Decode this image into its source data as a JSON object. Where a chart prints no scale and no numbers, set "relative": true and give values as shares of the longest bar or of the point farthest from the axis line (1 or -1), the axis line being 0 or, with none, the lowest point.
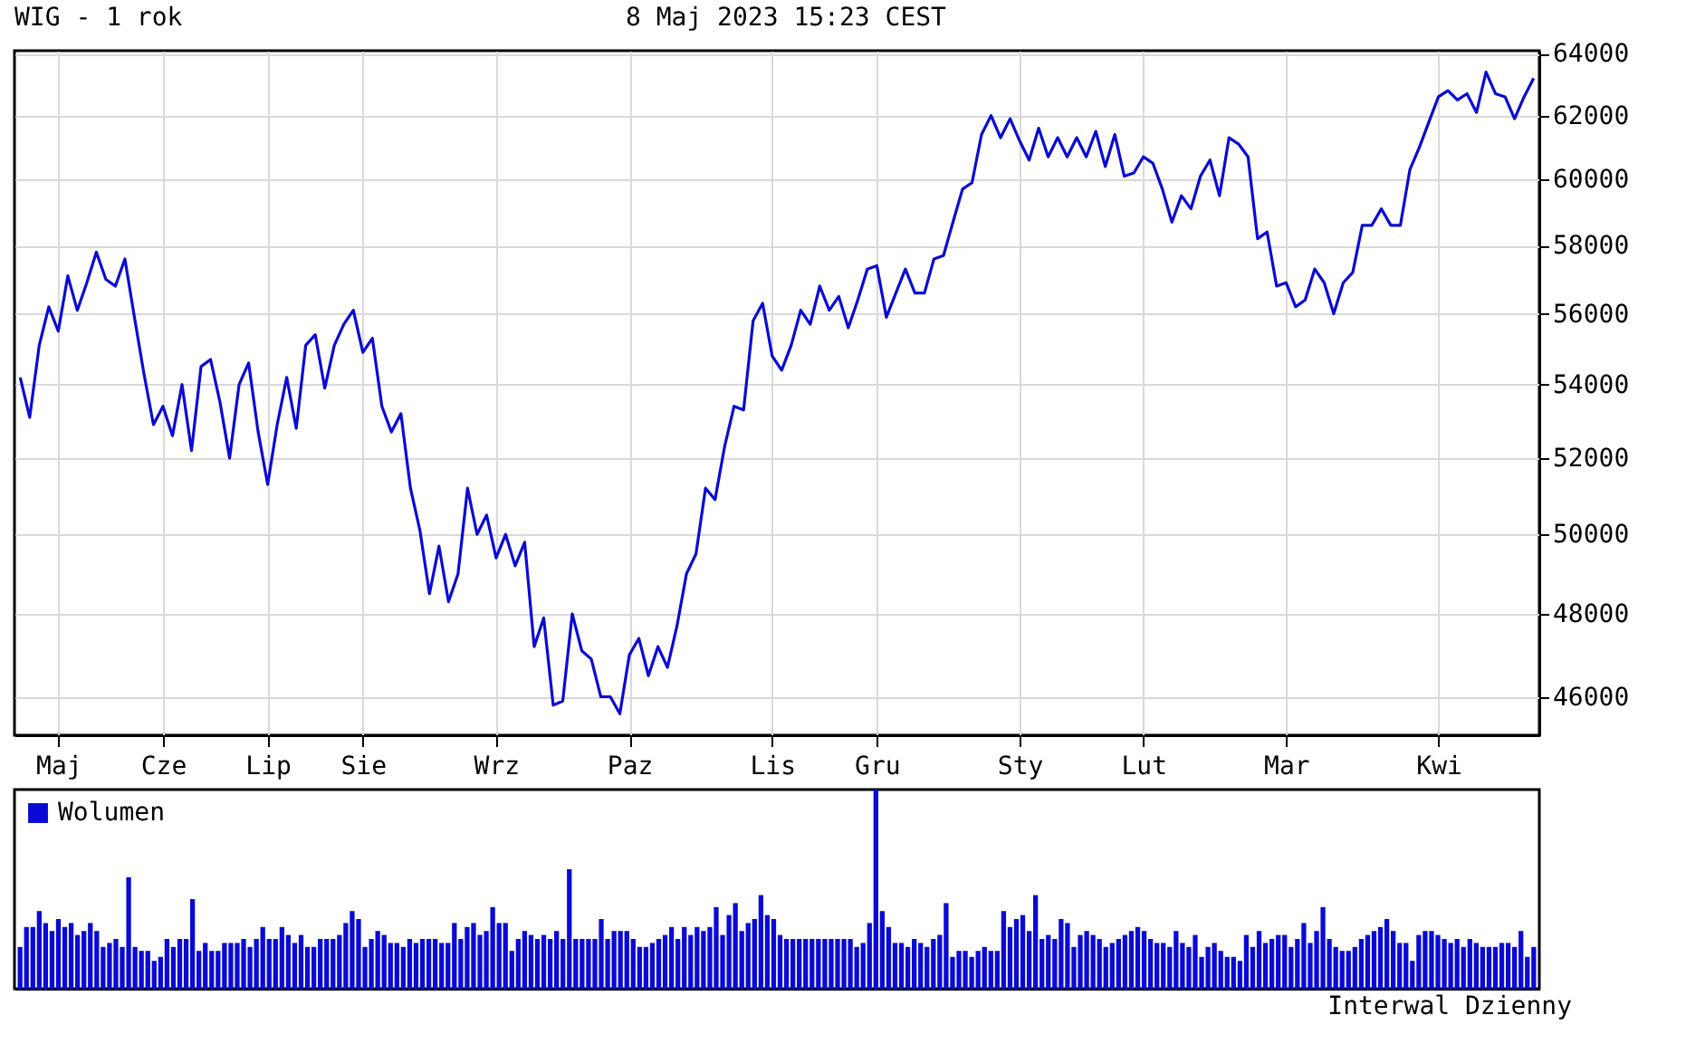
{
  "chart_data": [
    {
      "type": "line",
      "title": "WIG - 1 rok",
      "subtitle": "8 Maj 2023 15:23 CEST",
      "categories": [
        null,
        null,
        null,
        null,
        "Maj",
        null,
        null,
        null,
        null,
        null,
        null,
        null,
        null,
        null,
        null,
        "Cze",
        null,
        null,
        null,
        null,
        null,
        null,
        null,
        null,
        null,
        null,
        "Lip",
        null,
        null,
        null,
        null,
        null,
        null,
        null,
        null,
        null,
        "Sie",
        null,
        null,
        null,
        null,
        null,
        null,
        null,
        null,
        null,
        null,
        null,
        null,
        null,
        "Wrz",
        null,
        null,
        null,
        null,
        null,
        null,
        null,
        null,
        null,
        null,
        null,
        null,
        null,
        "Paz",
        null,
        null,
        null,
        null,
        null,
        null,
        null,
        null,
        null,
        null,
        null,
        null,
        null,
        null,
        "Lis",
        null,
        null,
        null,
        null,
        null,
        null,
        null,
        null,
        null,
        null,
        "Gru",
        null,
        null,
        null,
        null,
        null,
        null,
        null,
        null,
        null,
        null,
        null,
        null,
        null,
        null,
        "Sty",
        null,
        null,
        null,
        null,
        null,
        null,
        null,
        null,
        null,
        null,
        null,
        null,
        "Lut",
        null,
        null,
        null,
        null,
        null,
        null,
        null,
        null,
        null,
        null,
        null,
        null,
        null,
        null,
        "Mar",
        null,
        null,
        null,
        null,
        null,
        null,
        null,
        null,
        null,
        null,
        null,
        null,
        null,
        null,
        null,
        "Kwi",
        null,
        null,
        null,
        null,
        null,
        null,
        null,
        null,
        null,
        null
      ],
      "series": [
        {
          "color": "#0a0ad6",
          "values": [
            54200,
            53100,
            55100,
            56200,
            55500,
            57100,
            56100,
            56900,
            57800,
            57000,
            56800,
            57600,
            55900,
            54300,
            52900,
            53400,
            52600,
            54000,
            52200,
            54500,
            54700,
            53500,
            52000,
            54000,
            54600,
            52700,
            51300,
            52900,
            54200,
            52800,
            55100,
            55400,
            53900,
            55100,
            55700,
            56100,
            54900,
            55300,
            53400,
            52700,
            53200,
            51200,
            50100,
            48500,
            49700,
            48300,
            49000,
            51200,
            50000,
            50500,
            49400,
            50000,
            49200,
            49800,
            47200,
            47900,
            45800,
            45900,
            48000,
            47100,
            46900,
            46000,
            46000,
            45600,
            47000,
            47400,
            46500,
            47200,
            46700,
            47700,
            49000,
            49500,
            51200,
            50900,
            52300,
            53400,
            53300,
            55800,
            56300,
            54800,
            54400,
            55100,
            56100,
            55700,
            56800,
            56100,
            56500,
            55600,
            56400,
            57300,
            57400,
            55900,
            56600,
            57300,
            56600,
            56600,
            57600,
            57700,
            58700,
            59700,
            59900,
            61400,
            62000,
            61300,
            61900,
            61200,
            60600,
            61600,
            60700,
            61300,
            60700,
            61300,
            60700,
            61500,
            60400,
            61400,
            60100,
            60200,
            60700,
            60500,
            59700,
            58700,
            59500,
            59100,
            60100,
            60600,
            59500,
            61300,
            61100,
            60700,
            58200,
            58400,
            56800,
            56900,
            56200,
            56400,
            57300,
            56900,
            56000,
            56900,
            57200,
            58600,
            58600,
            59100,
            58600,
            58600,
            60300,
            61000,
            61800,
            62600,
            62800,
            62500,
            62700,
            62100,
            63400,
            62700,
            62600,
            61900,
            62600,
            63200
          ]
        }
      ],
      "ylim": [
        45100,
        64100
      ],
      "yticks": [
        46000,
        48000,
        50000,
        52000,
        54000,
        56000,
        58000,
        60000,
        62000,
        64000
      ],
      "log": true,
      "grid": true
    },
    {
      "type": "bar",
      "relative": true,
      "legend": "top left",
      "annotations": [
        "Interwal Dzienny"
      ],
      "categories": [
        null,
        null,
        null,
        null,
        null,
        null,
        null,
        null,
        null,
        null,
        null,
        null,
        null,
        null,
        null,
        null,
        null,
        null,
        null,
        null,
        null,
        null,
        null,
        null,
        null,
        null,
        null,
        null,
        null,
        null,
        null,
        null,
        null,
        null,
        null,
        null,
        null,
        null,
        null,
        null,
        null,
        null,
        null,
        null,
        null,
        null,
        null,
        null,
        null,
        null,
        null,
        null,
        null,
        null,
        null,
        null,
        null,
        null,
        null,
        null,
        null,
        null,
        null,
        null,
        null,
        null,
        null,
        null,
        null,
        null,
        null,
        null,
        null,
        null,
        null,
        null,
        null,
        null,
        null,
        null,
        null,
        null,
        null,
        null,
        null,
        null,
        null,
        null,
        null,
        null,
        null,
        null,
        null,
        null,
        null,
        null,
        null,
        null,
        null,
        null,
        null,
        null,
        null,
        null,
        null,
        null,
        null,
        null,
        null,
        null,
        null,
        null,
        null,
        null,
        null,
        null,
        null,
        null,
        null,
        null,
        null,
        null,
        null,
        null,
        null,
        null,
        null,
        null,
        null,
        null,
        null,
        null,
        null,
        null,
        null,
        null,
        null,
        null,
        null,
        null,
        null,
        null,
        null,
        null,
        null,
        null,
        null,
        null,
        null,
        null,
        null,
        null,
        null,
        null,
        null,
        null,
        null,
        null,
        null,
        null,
        null,
        null,
        null,
        null,
        null,
        null,
        null,
        null,
        null,
        null,
        null,
        null,
        null,
        null,
        null,
        null,
        null,
        null,
        null,
        null,
        null,
        null,
        null,
        null,
        null,
        null,
        null,
        null,
        null,
        null,
        null,
        null,
        null,
        null,
        null,
        null,
        null,
        null,
        null,
        null,
        null,
        null,
        null,
        null,
        null,
        null,
        null,
        null,
        null,
        null,
        null,
        null,
        null,
        null,
        null,
        null,
        null,
        null,
        null,
        null,
        null,
        null,
        null,
        null,
        null,
        null,
        null,
        null,
        null,
        null,
        null,
        null,
        null,
        null,
        null,
        null,
        null,
        null
      ],
      "series": [
        {
          "name": "Wolumen",
          "color": "#0a0ad6",
          "values": [
            0.21,
            0.31,
            0.31,
            0.39,
            0.33,
            0.29,
            0.35,
            0.31,
            0.33,
            0.27,
            0.29,
            0.33,
            0.29,
            0.21,
            0.23,
            0.25,
            0.21,
            0.56,
            0.21,
            0.19,
            0.19,
            0.14,
            0.16,
            0.25,
            0.21,
            0.25,
            0.25,
            0.45,
            0.19,
            0.23,
            0.19,
            0.19,
            0.23,
            0.23,
            0.23,
            0.25,
            0.21,
            0.25,
            0.31,
            0.25,
            0.25,
            0.31,
            0.27,
            0.23,
            0.27,
            0.21,
            0.21,
            0.25,
            0.25,
            0.25,
            0.27,
            0.33,
            0.39,
            0.35,
            0.21,
            0.25,
            0.29,
            0.27,
            0.23,
            0.23,
            0.21,
            0.25,
            0.23,
            0.25,
            0.25,
            0.25,
            0.23,
            0.23,
            0.33,
            0.25,
            0.31,
            0.33,
            0.27,
            0.29,
            0.41,
            0.33,
            0.33,
            0.19,
            0.25,
            0.29,
            0.27,
            0.25,
            0.27,
            0.25,
            0.29,
            0.25,
            0.6,
            0.25,
            0.25,
            0.25,
            0.25,
            0.35,
            0.25,
            0.29,
            0.29,
            0.29,
            0.25,
            0.21,
            0.21,
            0.23,
            0.25,
            0.27,
            0.31,
            0.25,
            0.31,
            0.27,
            0.31,
            0.29,
            0.31,
            0.41,
            0.27,
            0.37,
            0.43,
            0.29,
            0.33,
            0.35,
            0.47,
            0.37,
            0.35,
            0.27,
            0.25,
            0.25,
            0.25,
            0.25,
            0.25,
            0.25,
            0.25,
            0.25,
            0.25,
            0.25,
            0.25,
            0.21,
            0.23,
            0.33,
            1,
            0.39,
            0.31,
            0.23,
            0.23,
            0.21,
            0.25,
            0.23,
            0.21,
            0.25,
            0.27,
            0.43,
            0.16,
            0.19,
            0.19,
            0.16,
            0.19,
            0.21,
            0.19,
            0.19,
            0.39,
            0.31,
            0.35,
            0.37,
            0.29,
            0.47,
            0.25,
            0.27,
            0.25,
            0.35,
            0.33,
            0.21,
            0.27,
            0.29,
            0.27,
            0.25,
            0.21,
            0.23,
            0.25,
            0.27,
            0.29,
            0.31,
            0.29,
            0.25,
            0.23,
            0.23,
            0.21,
            0.29,
            0.23,
            0.21,
            0.27,
            0.16,
            0.21,
            0.23,
            0.19,
            0.16,
            0.16,
            0.14,
            0.27,
            0.21,
            0.29,
            0.23,
            0.25,
            0.27,
            0.27,
            0.21,
            0.25,
            0.33,
            0.23,
            0.29,
            0.41,
            0.25,
            0.21,
            0.19,
            0.19,
            0.21,
            0.25,
            0.27,
            0.29,
            0.31,
            0.35,
            0.29,
            0.23,
            0.23,
            0.14,
            0.27,
            0.29,
            0.29,
            0.27,
            0.25,
            0.23,
            0.25,
            0.21,
            0.25,
            0.23,
            0.21,
            0.21,
            0.21,
            0.23,
            0.23,
            0.21,
            0.29,
            0.16,
            0.21
          ]
        }
      ]
    }
  ]
}
